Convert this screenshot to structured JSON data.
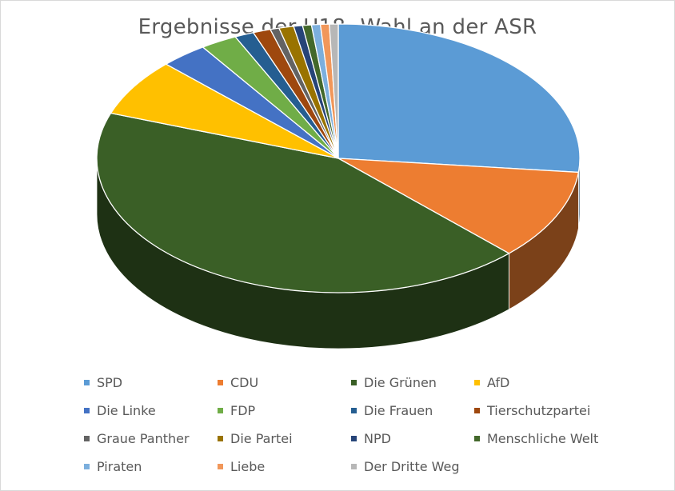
{
  "chart_data": {
    "type": "pie",
    "title": "Ergebnisse der U18- Wahl an der ASR",
    "categories": [
      "SPD",
      "CDU",
      "Die Grünen",
      "AfD",
      "Die Linke",
      "FDP",
      "Die Frauen",
      "Tierschutzpartei",
      "Graue Panther",
      "Die Partei",
      "NPD",
      "Menschliche Welt",
      "Piraten",
      "Liebe",
      "Der Dritte Weg"
    ],
    "values": [
      27.0,
      11.0,
      43.5,
      7.0,
      3.2,
      2.5,
      1.3,
      1.2,
      0.6,
      1.0,
      0.6,
      0.6,
      0.6,
      0.6,
      0.6
    ],
    "colors": [
      "#5b9bd5",
      "#ed7d31",
      "#3a5f26",
      "#ffc000",
      "#4472c4",
      "#70ad47",
      "#255e91",
      "#9e480e",
      "#636363",
      "#997300",
      "#264478",
      "#43682b",
      "#7cafdd",
      "#f1975a",
      "#b7b7b7"
    ],
    "legend_position": "bottom",
    "style": "3d-pie"
  }
}
